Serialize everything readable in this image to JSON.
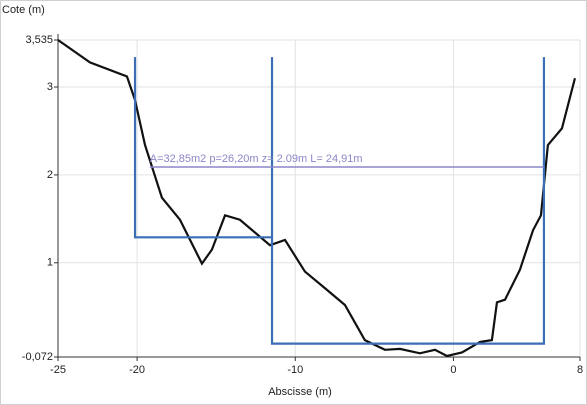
{
  "chart_data": {
    "type": "line",
    "y_label": "Cote (m)",
    "x_label": "Abscisse (m)",
    "annotation": "A=32,85m2 p=26,20m z=  2.09m L=  24,91m",
    "xlim": [
      -25,
      8
    ],
    "ylim": [
      -0.072,
      3.535
    ],
    "xticks": [
      -25,
      -20,
      -10,
      0,
      8
    ],
    "yticks": [
      {
        "value": -0.072,
        "label": "-0,072"
      },
      1,
      2,
      3,
      {
        "value": 3.535,
        "label": "3,535"
      }
    ],
    "grid": true,
    "series": [
      {
        "color": "#111111",
        "x": [
          -25,
          -22.98,
          -20.64,
          -20.13,
          -19.5,
          -18.43,
          -17.29,
          -15.9,
          -15.27,
          -14.44,
          -13.5,
          -11.6,
          -10.65,
          -9.39,
          -8.12,
          -6.86,
          -5.6,
          -4.33,
          -3.38,
          -2.12,
          -1.17,
          -0.41,
          0.54,
          1.68,
          2.43,
          2.75,
          3.26,
          4.2,
          5.03,
          5.53,
          5.97,
          6.86,
          7.68
        ],
        "values": [
          3.535,
          3.28,
          3.12,
          2.85,
          2.34,
          1.74,
          1.49,
          0.99,
          1.15,
          1.54,
          1.49,
          1.2,
          1.26,
          0.9,
          0.71,
          0.52,
          0.12,
          0.01,
          0.02,
          -0.03,
          0.01,
          -0.06,
          -0.02,
          0.1,
          0.12,
          0.55,
          0.58,
          0.92,
          1.37,
          1.54,
          2.34,
          2.53,
          3.1
        ]
      },
      {
        "color": "#3a6fb5",
        "x": [
          -20.13,
          -20.13,
          -11.47,
          -11.47,
          null,
          -11.47,
          -11.47,
          5.72,
          5.72
        ],
        "values": [
          3.34,
          1.29,
          1.29,
          3.34,
          null,
          3.34,
          0.08,
          0.08,
          3.34
        ]
      },
      {
        "color": "#8b86c9",
        "x": [
          -19.2,
          5.72
        ],
        "values": [
          2.09,
          2.09
        ]
      }
    ]
  }
}
